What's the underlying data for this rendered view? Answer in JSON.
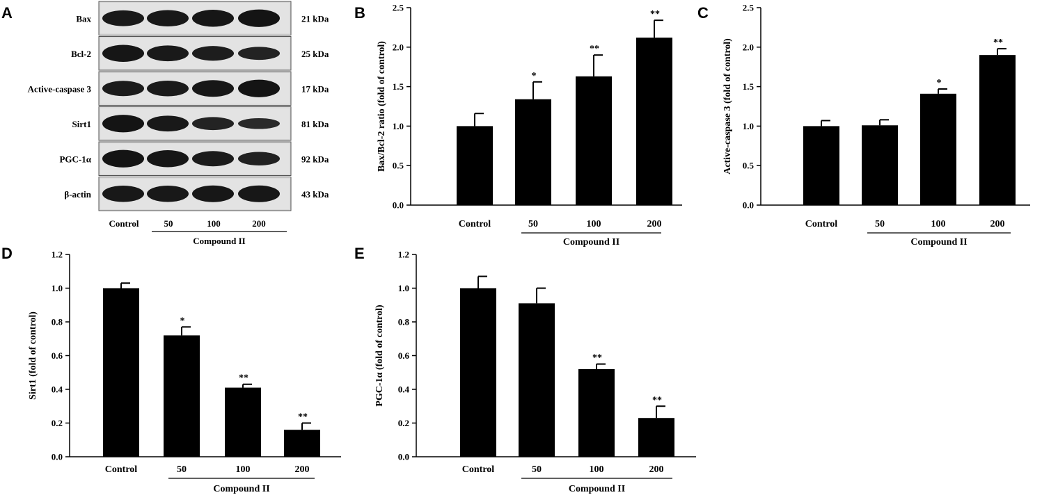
{
  "panel_letters": [
    "A",
    "B",
    "C",
    "D",
    "E"
  ],
  "western_blot": {
    "rows": [
      {
        "protein": "Bax",
        "size": "21 kDa",
        "band_intensity": [
          0.8,
          0.85,
          0.9,
          0.95
        ]
      },
      {
        "protein": "Bcl-2",
        "size": "25 kDa",
        "band_intensity": [
          0.9,
          0.8,
          0.7,
          0.55
        ]
      },
      {
        "protein": "Active-caspase 3",
        "size": "17 kDa",
        "band_intensity": [
          0.75,
          0.78,
          0.88,
          0.95
        ]
      },
      {
        "protein": "Sirt1",
        "size": "81 kDa",
        "band_intensity": [
          0.95,
          0.8,
          0.55,
          0.35
        ]
      },
      {
        "protein": "PGC-1α",
        "size": "92 kDa",
        "band_intensity": [
          0.95,
          0.9,
          0.75,
          0.6
        ]
      },
      {
        "protein": "β-actin",
        "size": "43 kDa",
        "band_intensity": [
          0.85,
          0.85,
          0.88,
          0.88
        ]
      }
    ],
    "lanes": [
      "Control",
      "50",
      "100",
      "200"
    ],
    "group_label": "Compound II"
  },
  "chart_data": [
    {
      "panel": "B",
      "type": "bar",
      "categories": [
        "Control",
        "50",
        "100",
        "200"
      ],
      "values": [
        1.0,
        1.34,
        1.63,
        2.12
      ],
      "errors": [
        0.16,
        0.22,
        0.27,
        0.22
      ],
      "significance": [
        "",
        "*",
        "**",
        "**"
      ],
      "ylabel": "Bax/Bcl-2 ratio (fold of control)",
      "yticks": [
        "0.0",
        "0.5",
        "1.0",
        "1.5",
        "2.0",
        "2.5"
      ],
      "ylim": [
        0,
        2.5
      ],
      "group_label": "Compound II"
    },
    {
      "panel": "C",
      "type": "bar",
      "categories": [
        "Control",
        "50",
        "100",
        "200"
      ],
      "values": [
        1.0,
        1.01,
        1.41,
        1.9
      ],
      "errors": [
        0.07,
        0.07,
        0.06,
        0.08
      ],
      "significance": [
        "",
        "",
        "*",
        "**"
      ],
      "ylabel": "Active-caspase 3 (fold of control)",
      "yticks": [
        "0.0",
        "0.5",
        "1.0",
        "1.5",
        "2.0",
        "2.5"
      ],
      "ylim": [
        0,
        2.5
      ],
      "group_label": "Compound II"
    },
    {
      "panel": "D",
      "type": "bar",
      "categories": [
        "Control",
        "50",
        "100",
        "200"
      ],
      "values": [
        1.0,
        0.72,
        0.41,
        0.16
      ],
      "errors": [
        0.03,
        0.05,
        0.02,
        0.04
      ],
      "significance": [
        "",
        "*",
        "**",
        "**"
      ],
      "ylabel": "Sirt1 (fold of control)",
      "yticks": [
        "0.0",
        "0.2",
        "0.4",
        "0.6",
        "0.8",
        "1.0",
        "1.2"
      ],
      "ylim": [
        0,
        1.2
      ],
      "group_label": "Compound II"
    },
    {
      "panel": "E",
      "type": "bar",
      "categories": [
        "Control",
        "50",
        "100",
        "200"
      ],
      "values": [
        1.0,
        0.91,
        0.52,
        0.23
      ],
      "errors": [
        0.07,
        0.09,
        0.03,
        0.07
      ],
      "significance": [
        "",
        "",
        "**",
        "**"
      ],
      "ylabel": "PGC-1α (fold of control)",
      "yticks": [
        "0.0",
        "0.2",
        "0.4",
        "0.6",
        "0.8",
        "1.0",
        "1.2"
      ],
      "ylim": [
        0,
        1.2
      ],
      "group_label": "Compound II"
    }
  ]
}
